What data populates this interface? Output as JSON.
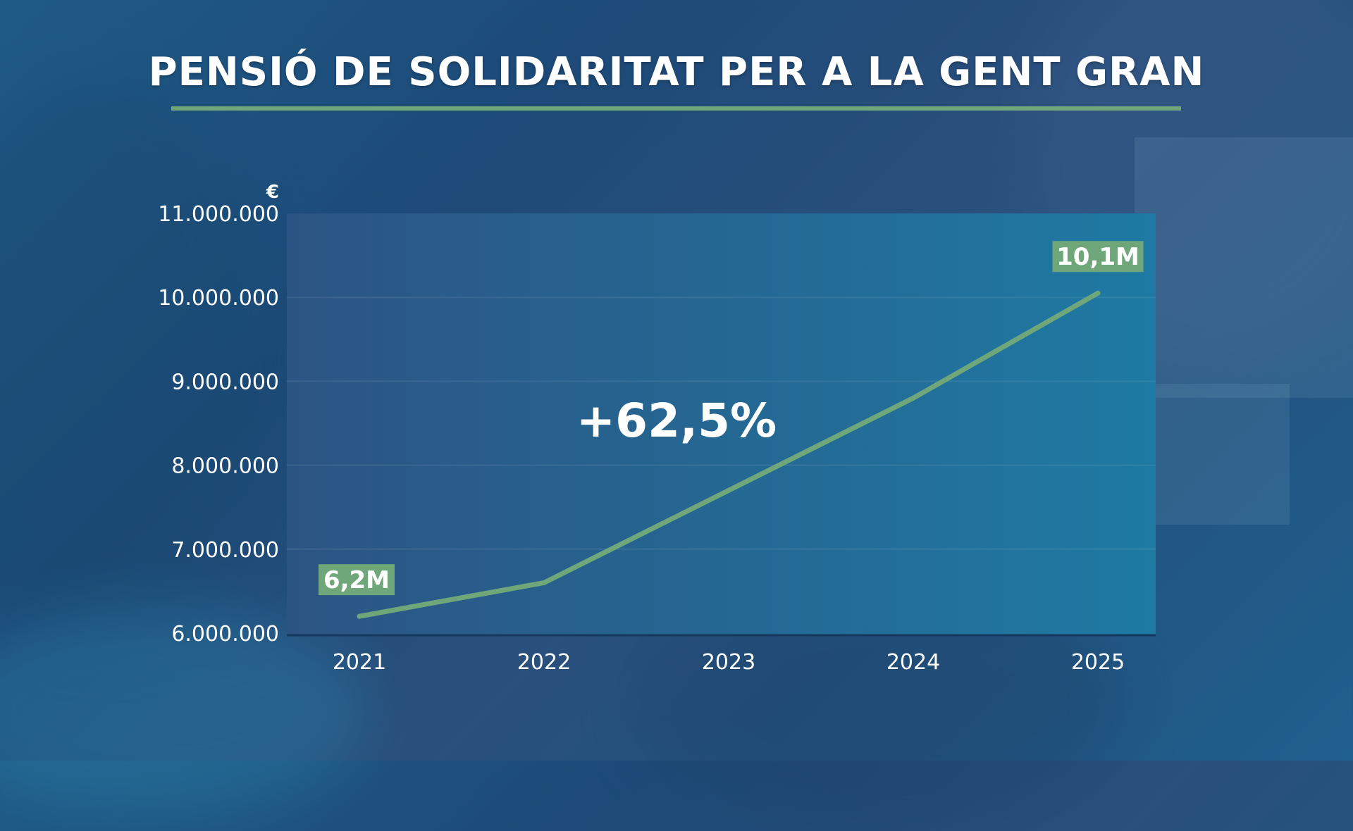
{
  "title": "PENSIÓ DE SOLIDARITAT PER A LA GENT GRAN",
  "colors": {
    "accent": "#6fa77a",
    "line": "#6fa77a",
    "plot_bg_start": "#2c5483",
    "plot_bg_end": "#1e7aa3",
    "text": "#ffffff"
  },
  "chart_data": {
    "type": "line",
    "title": "PENSIÓ DE SOLIDARITAT PER A LA GENT GRAN",
    "y_unit": "€",
    "x": [
      "2021",
      "2022",
      "2023",
      "2024",
      "2025"
    ],
    "series": [
      {
        "values": [
          6200000,
          6600000,
          7700000,
          8800000,
          10050000
        ]
      }
    ],
    "ylim": [
      6000000,
      11000000
    ],
    "yticks": [
      6000000,
      7000000,
      8000000,
      9000000,
      10000000,
      11000000
    ],
    "ytick_labels": [
      "6.000.000",
      "7.000.000",
      "8.000.000",
      "9.000.000",
      "10.000.000",
      "11.000.000"
    ],
    "grid": true,
    "data_labels": [
      {
        "index": 0,
        "text": "6,2M"
      },
      {
        "index": 4,
        "text": "10,1M"
      }
    ],
    "annotation": "+62,5%"
  }
}
